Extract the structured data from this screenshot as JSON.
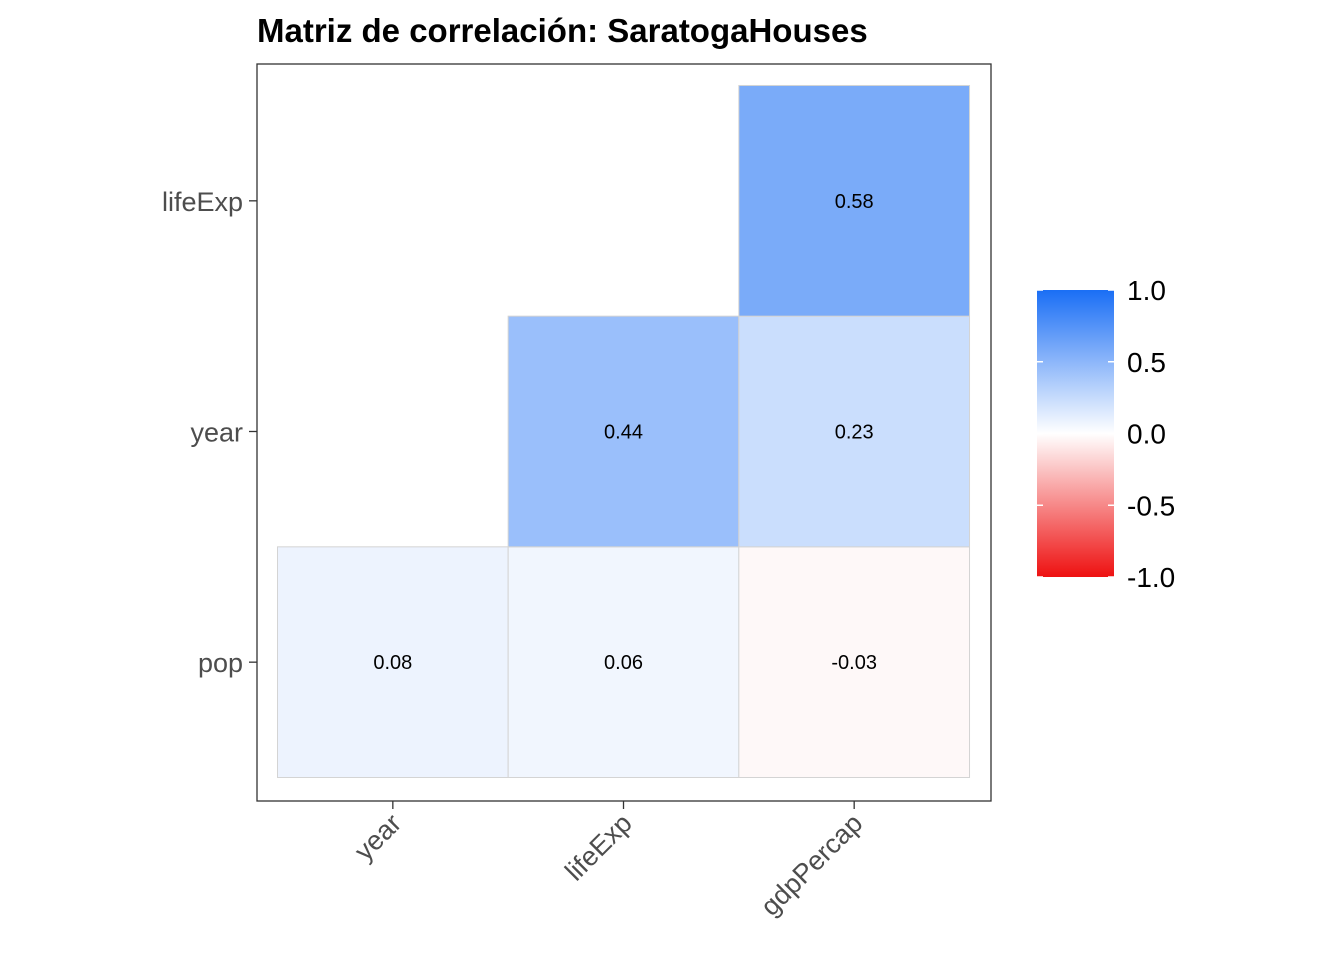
{
  "chart_data": {
    "type": "heatmap",
    "title": "Matriz de correlación: SaratogaHouses",
    "x_categories": [
      "year",
      "lifeExp",
      "gdpPercap"
    ],
    "y_categories": [
      "pop",
      "year",
      "lifeExp"
    ],
    "cells": [
      {
        "x": "year",
        "y": "pop",
        "value": 0.08,
        "label": "0.08"
      },
      {
        "x": "lifeExp",
        "y": "pop",
        "value": 0.06,
        "label": "0.06"
      },
      {
        "x": "gdpPercap",
        "y": "pop",
        "value": -0.03,
        "label": "-0.03"
      },
      {
        "x": "lifeExp",
        "y": "year",
        "value": 0.44,
        "label": "0.44"
      },
      {
        "x": "gdpPercap",
        "y": "year",
        "value": 0.23,
        "label": "0.23"
      },
      {
        "x": "gdpPercap",
        "y": "lifeExp",
        "value": 0.58,
        "label": "0.58"
      }
    ],
    "color_scale": {
      "low": "#ee1111",
      "mid": "#ffffff",
      "high": "#1a6ef5",
      "limits": [
        -1,
        1
      ]
    },
    "legend": {
      "position": "right",
      "ticks": [
        {
          "value": 1.0,
          "label": "1.0"
        },
        {
          "value": 0.5,
          "label": "0.5"
        },
        {
          "value": 0.0,
          "label": "0.0"
        },
        {
          "value": -0.5,
          "label": "-0.5"
        },
        {
          "value": -1.0,
          "label": "-1.0"
        }
      ]
    },
    "grid": false
  }
}
